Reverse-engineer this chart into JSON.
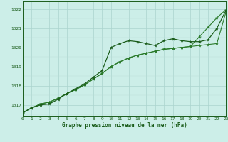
{
  "x": [
    0,
    1,
    2,
    3,
    4,
    5,
    6,
    7,
    8,
    9,
    10,
    11,
    12,
    13,
    14,
    15,
    16,
    17,
    18,
    19,
    20,
    21,
    22,
    23
  ],
  "line_curved": [
    1016.6,
    1016.85,
    1017.0,
    1017.05,
    1017.3,
    1017.6,
    1017.85,
    1018.1,
    1018.45,
    1018.8,
    1020.0,
    1020.2,
    1020.35,
    1020.3,
    1020.2,
    1020.1,
    1020.35,
    1020.45,
    1020.35,
    1020.3,
    1020.3,
    1020.4,
    1021.0,
    1021.9
  ],
  "line_lower": [
    1016.6,
    1016.85,
    1017.05,
    1017.15,
    1017.35,
    1017.6,
    1017.8,
    1018.05,
    1018.35,
    1018.65,
    1019.0,
    1019.25,
    1019.45,
    1019.6,
    1019.7,
    1019.8,
    1019.9,
    1019.95,
    1020.0,
    1020.05,
    1020.1,
    1020.15,
    1020.2,
    1021.8
  ],
  "line_upper": [
    1016.6,
    1016.85,
    1017.05,
    1017.15,
    1017.35,
    1017.6,
    1017.8,
    1018.05,
    1018.35,
    1018.65,
    1019.0,
    1019.25,
    1019.45,
    1019.6,
    1019.7,
    1019.8,
    1019.9,
    1019.95,
    1020.0,
    1020.05,
    1020.55,
    1021.05,
    1021.55,
    1021.95
  ],
  "bg_color": "#cceee8",
  "grid_color_major": "#aad4ce",
  "grid_color_minor": "#bbddd8",
  "line_dark": "#1a5c1a",
  "line_mid": "#2a7a2a",
  "ylabel_ticks": [
    1017,
    1018,
    1019,
    1020,
    1021,
    1022
  ],
  "xlabel": "Graphe pression niveau de la mer (hPa)",
  "ylim": [
    1016.4,
    1022.4
  ],
  "xlim": [
    0,
    23
  ]
}
